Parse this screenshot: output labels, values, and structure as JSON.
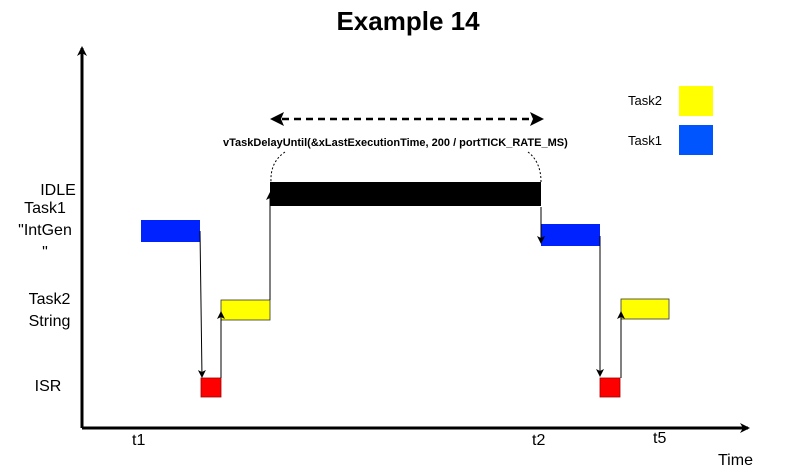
{
  "title": "Example 14",
  "rows": {
    "idle": "IDLE",
    "task1": [
      "Task1",
      "\"IntGen",
      "\""
    ],
    "task2": [
      "Task2",
      "String"
    ],
    "isr": "ISR"
  },
  "x_axis": {
    "label": "Time",
    "ticks": [
      "t1",
      "t2",
      "t5"
    ]
  },
  "legend": [
    {
      "label": "Task2",
      "color": "#ffff00"
    },
    {
      "label": "Task1",
      "color": "#0033ff"
    }
  ],
  "annotation": "vTaskDelayUntil(&xLastExecutionTime, 200 / portTICK_RATE_MS)",
  "colors": {
    "task1": "#0022ff",
    "task2": "#ffff00",
    "isr": "#ff0000",
    "idle": "#000000"
  }
}
